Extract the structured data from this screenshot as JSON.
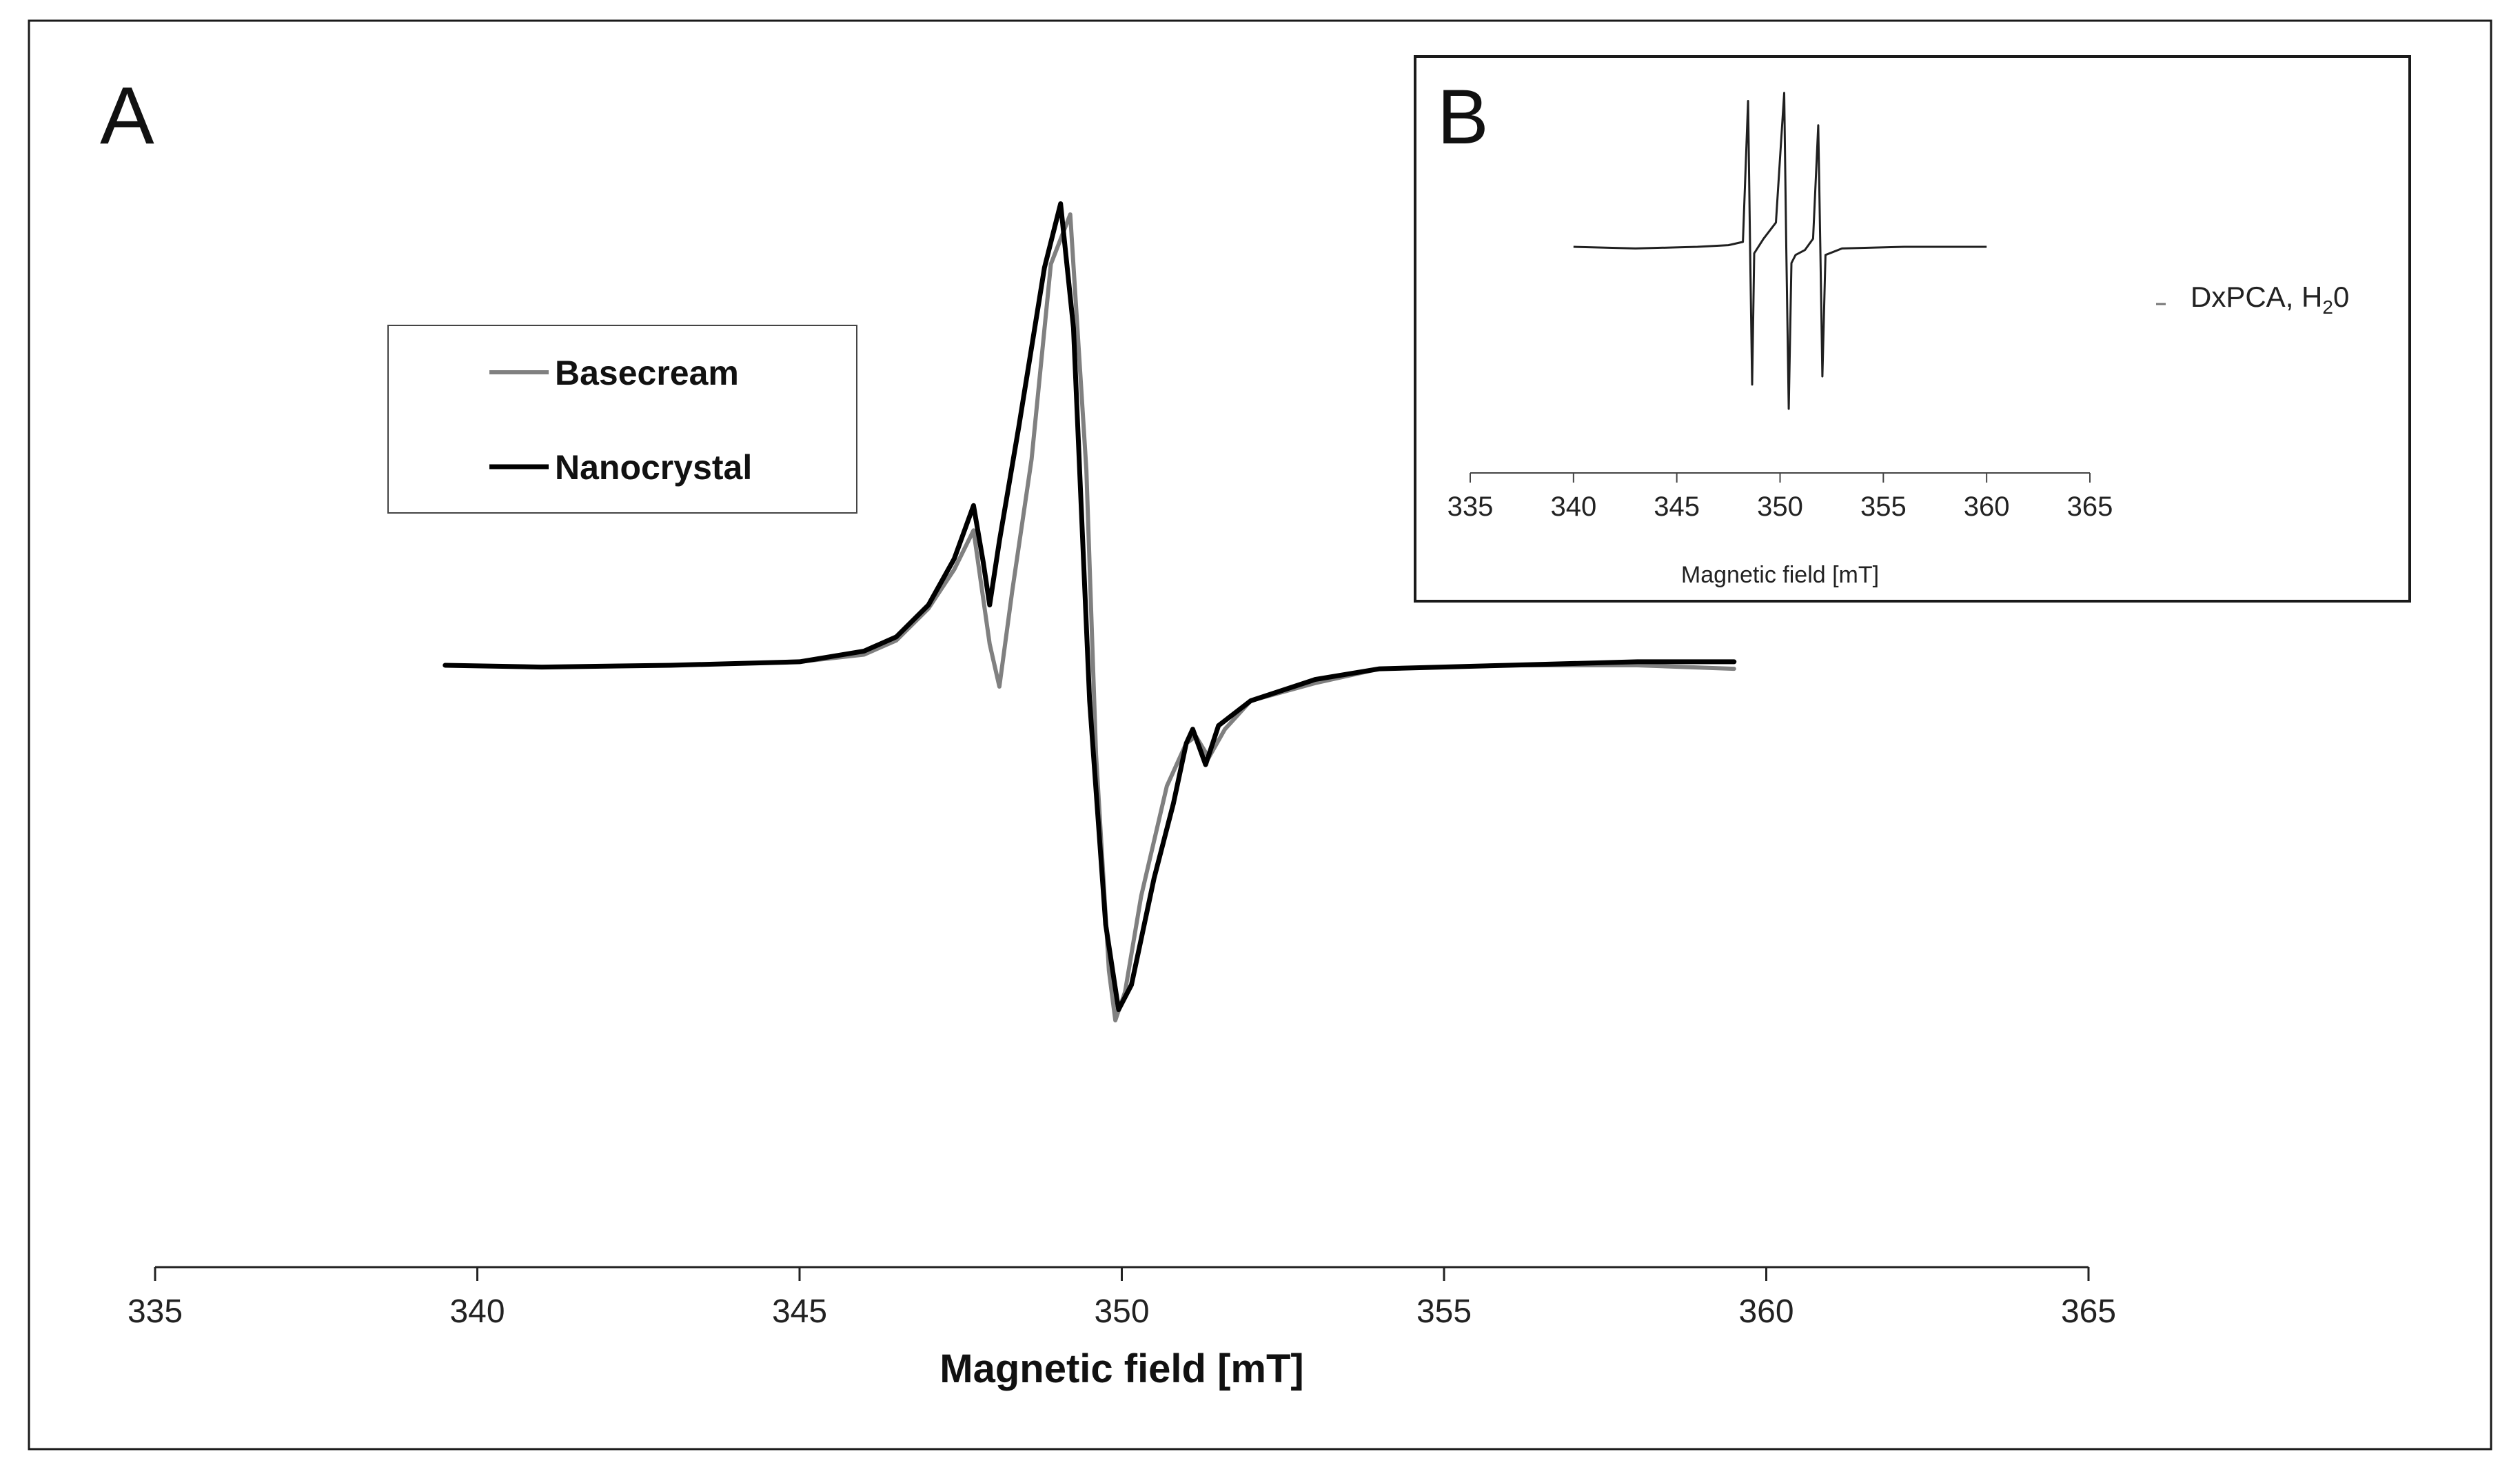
{
  "chart_data": [
    {
      "panel": "A",
      "type": "line",
      "xlabel": "Magnetic field [mT]",
      "ylabel": "",
      "xlim": [
        335,
        365
      ],
      "xticks": [
        335,
        340,
        345,
        350,
        355,
        360,
        365
      ],
      "ylim": [
        -1.0,
        1.0
      ],
      "y_axis_visible": false,
      "grid": false,
      "legend_position": "upper-left",
      "series": [
        {
          "name": "Basecream",
          "color": "#808080",
          "x": [
            339.5,
            341,
            343,
            345,
            346,
            346.5,
            347,
            347.4,
            347.7,
            347.95,
            348.1,
            348.3,
            348.6,
            348.9,
            349.2,
            349.45,
            349.6,
            349.8,
            349.9,
            350.05,
            350.3,
            350.7,
            351.0,
            351.15,
            351.35,
            351.6,
            352.0,
            353.0,
            354.0,
            356.0,
            358.0,
            359.5
          ],
          "y": [
            0.0,
            -0.005,
            0.0,
            0.01,
            0.03,
            0.07,
            0.16,
            0.27,
            0.38,
            0.06,
            -0.06,
            0.21,
            0.58,
            1.13,
            1.27,
            0.55,
            -0.25,
            -0.86,
            -1.0,
            -0.92,
            -0.65,
            -0.34,
            -0.22,
            -0.2,
            -0.26,
            -0.18,
            -0.1,
            -0.05,
            -0.01,
            0.0,
            0.0,
            -0.01
          ]
        },
        {
          "name": "Nanocrystal",
          "color": "#000000",
          "x": [
            339.5,
            341,
            343,
            345,
            346,
            346.5,
            347,
            347.4,
            347.7,
            347.85,
            347.95,
            348.1,
            348.4,
            348.8,
            349.05,
            349.25,
            349.5,
            349.75,
            349.95,
            350.15,
            350.5,
            350.8,
            351.0,
            351.1,
            351.3,
            351.5,
            352.0,
            353.0,
            354.0,
            356.0,
            358.0,
            359.5
          ],
          "y": [
            0.0,
            -0.005,
            0.0,
            0.01,
            0.04,
            0.08,
            0.17,
            0.3,
            0.45,
            0.29,
            0.17,
            0.35,
            0.67,
            1.12,
            1.3,
            0.95,
            -0.1,
            -0.73,
            -0.97,
            -0.9,
            -0.6,
            -0.39,
            -0.22,
            -0.18,
            -0.28,
            -0.17,
            -0.1,
            -0.04,
            -0.01,
            0.0,
            0.01,
            0.01
          ]
        }
      ]
    },
    {
      "panel": "B",
      "type": "line",
      "xlabel": "Magnetic field [mT]",
      "ylabel": "",
      "xlim": [
        335,
        365
      ],
      "xticks": [
        335,
        340,
        345,
        350,
        355,
        360,
        365
      ],
      "ylim": [
        -1.0,
        1.0
      ],
      "y_axis_visible": false,
      "grid": false,
      "legend_position": "right-outside",
      "series": [
        {
          "name": "DxPCA, H20",
          "name_main": "DxPCA, H",
          "name_sub": "2",
          "name_suffix": "0",
          "color": "#202020",
          "x": [
            340,
            343,
            346,
            347.5,
            348.2,
            348.45,
            348.55,
            348.65,
            348.75,
            349.2,
            349.8,
            350.2,
            350.3,
            350.42,
            350.55,
            350.75,
            351.2,
            351.6,
            351.85,
            351.95,
            352.05,
            352.2,
            353.0,
            356.0,
            360.0
          ],
          "y": [
            0.0,
            -0.01,
            0.0,
            0.01,
            0.03,
            0.9,
            0.0,
            -0.85,
            -0.04,
            0.05,
            0.15,
            0.95,
            0.0,
            -1.0,
            -0.1,
            -0.05,
            -0.02,
            0.05,
            0.75,
            0.0,
            -0.8,
            -0.05,
            -0.01,
            0.0,
            0.0
          ]
        }
      ]
    }
  ]
}
